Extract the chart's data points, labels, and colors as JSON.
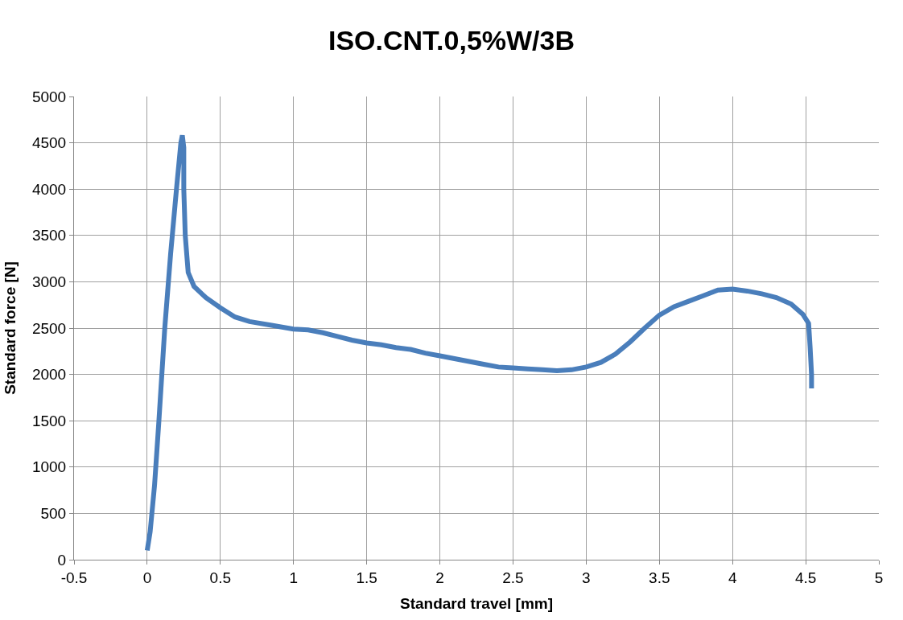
{
  "chart_data": {
    "type": "line",
    "title": "ISO.CNT.0,5%W/3B",
    "xlabel": "Standard travel [mm]",
    "ylabel": "Standard force [N]",
    "xlim": [
      -0.5,
      5
    ],
    "xticks": [
      -0.5,
      0,
      0.5,
      1,
      1.5,
      2,
      2.5,
      3,
      3.5,
      4,
      4.5,
      5
    ],
    "ylim": [
      0,
      5000
    ],
    "yticks": [
      0,
      500,
      1000,
      1500,
      2000,
      2500,
      3000,
      3500,
      4000,
      4500,
      5000
    ],
    "grid": true,
    "marker": "none",
    "line_style": "solid",
    "series": [
      {
        "color": "#4a7ebb",
        "x": [
          0,
          0.02,
          0.05,
          0.08,
          0.12,
          0.16,
          0.2,
          0.23,
          0.24,
          0.25,
          0.25,
          0.26,
          0.28,
          0.32,
          0.4,
          0.5,
          0.6,
          0.7,
          0.85,
          1.0,
          1.1,
          1.2,
          1.3,
          1.4,
          1.5,
          1.6,
          1.7,
          1.8,
          1.9,
          2.0,
          2.1,
          2.2,
          2.3,
          2.4,
          2.5,
          2.6,
          2.7,
          2.8,
          2.9,
          3.0,
          3.1,
          3.2,
          3.3,
          3.4,
          3.5,
          3.6,
          3.7,
          3.8,
          3.9,
          4.0,
          4.1,
          4.2,
          4.3,
          4.4,
          4.48,
          4.52,
          4.53,
          4.54,
          4.54
        ],
        "values": [
          100,
          300,
          800,
          1500,
          2500,
          3300,
          4000,
          4500,
          4580,
          4450,
          4000,
          3500,
          3100,
          2950,
          2830,
          2720,
          2620,
          2570,
          2530,
          2490,
          2480,
          2450,
          2410,
          2370,
          2340,
          2320,
          2290,
          2270,
          2230,
          2200,
          2170,
          2140,
          2110,
          2080,
          2070,
          2060,
          2050,
          2040,
          2050,
          2080,
          2130,
          2220,
          2350,
          2500,
          2640,
          2730,
          2790,
          2850,
          2910,
          2920,
          2900,
          2870,
          2830,
          2760,
          2650,
          2550,
          2300,
          2000,
          1850
        ]
      }
    ]
  }
}
